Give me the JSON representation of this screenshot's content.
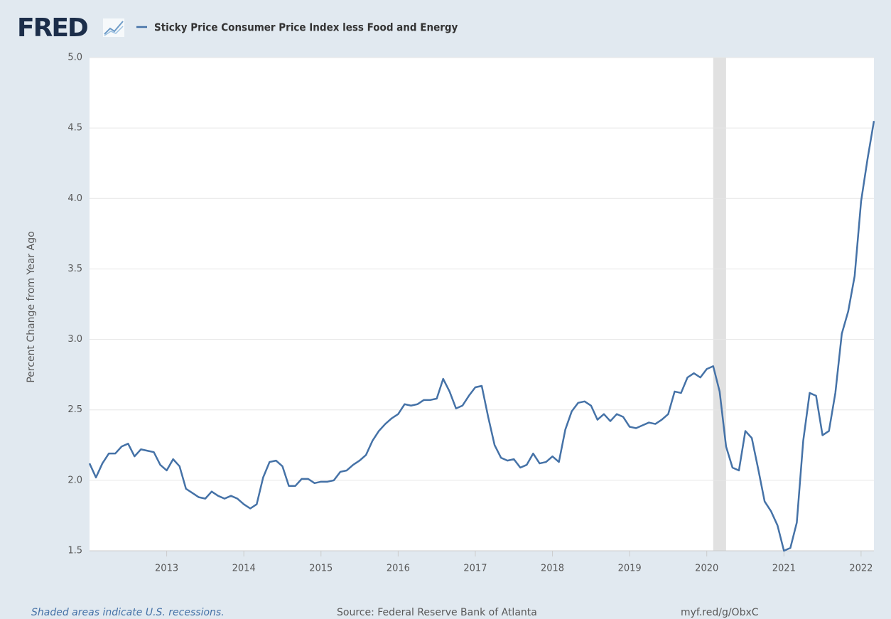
{
  "chart_data": {
    "type": "line",
    "logo": "FRED",
    "ylabel": "Percent Change from Year Ago",
    "footnote": "Shaded areas indicate U.S. recessions.",
    "source": "Source: Federal Reserve Bank of Atlanta",
    "url": "myf.red/g/ObxC",
    "x": [
      "2012-01",
      "2012-02",
      "2012-03",
      "2012-04",
      "2012-05",
      "2012-06",
      "2012-07",
      "2012-08",
      "2012-09",
      "2012-10",
      "2012-11",
      "2012-12",
      "2013-01",
      "2013-02",
      "2013-03",
      "2013-04",
      "2013-05",
      "2013-06",
      "2013-07",
      "2013-08",
      "2013-09",
      "2013-10",
      "2013-11",
      "2013-12",
      "2014-01",
      "2014-02",
      "2014-03",
      "2014-04",
      "2014-05",
      "2014-06",
      "2014-07",
      "2014-08",
      "2014-09",
      "2014-10",
      "2014-11",
      "2014-12",
      "2015-01",
      "2015-02",
      "2015-03",
      "2015-04",
      "2015-05",
      "2015-06",
      "2015-07",
      "2015-08",
      "2015-09",
      "2015-10",
      "2015-11",
      "2015-12",
      "2016-01",
      "2016-02",
      "2016-03",
      "2016-04",
      "2016-05",
      "2016-06",
      "2016-07",
      "2016-08",
      "2016-09",
      "2016-10",
      "2016-11",
      "2016-12",
      "2017-01",
      "2017-02",
      "2017-03",
      "2017-04",
      "2017-05",
      "2017-06",
      "2017-07",
      "2017-08",
      "2017-09",
      "2017-10",
      "2017-11",
      "2017-12",
      "2018-01",
      "2018-02",
      "2018-03",
      "2018-04",
      "2018-05",
      "2018-06",
      "2018-07",
      "2018-08",
      "2018-09",
      "2018-10",
      "2018-11",
      "2018-12",
      "2019-01",
      "2019-02",
      "2019-03",
      "2019-04",
      "2019-05",
      "2019-06",
      "2019-07",
      "2019-08",
      "2019-09",
      "2019-10",
      "2019-11",
      "2019-12",
      "2020-01",
      "2020-02",
      "2020-03",
      "2020-04",
      "2020-05",
      "2020-06",
      "2020-07",
      "2020-08",
      "2020-09",
      "2020-10",
      "2020-11",
      "2020-12",
      "2021-01",
      "2021-02",
      "2021-03",
      "2021-04",
      "2021-05",
      "2021-06",
      "2021-07",
      "2021-08",
      "2021-09",
      "2021-10",
      "2021-11",
      "2021-12",
      "2022-01",
      "2022-02",
      "2022-03"
    ],
    "series": [
      {
        "name": "Sticky Price Consumer Price Index less Food and Energy",
        "color": "#4572a7",
        "values": [
          2.12,
          2.02,
          2.12,
          2.19,
          2.19,
          2.24,
          2.26,
          2.17,
          2.22,
          2.21,
          2.2,
          2.11,
          2.07,
          2.15,
          2.1,
          1.94,
          1.91,
          1.88,
          1.87,
          1.92,
          1.89,
          1.87,
          1.89,
          1.87,
          1.83,
          1.8,
          1.83,
          2.02,
          2.13,
          2.14,
          2.1,
          1.96,
          1.96,
          2.01,
          2.01,
          1.98,
          1.99,
          1.99,
          2.0,
          2.06,
          2.07,
          2.11,
          2.14,
          2.18,
          2.28,
          2.35,
          2.4,
          2.44,
          2.47,
          2.54,
          2.53,
          2.54,
          2.57,
          2.57,
          2.58,
          2.72,
          2.63,
          2.51,
          2.53,
          2.6,
          2.66,
          2.67,
          2.45,
          2.25,
          2.16,
          2.14,
          2.15,
          2.09,
          2.11,
          2.19,
          2.12,
          2.13,
          2.17,
          2.13,
          2.36,
          2.49,
          2.55,
          2.56,
          2.53,
          2.43,
          2.47,
          2.42,
          2.47,
          2.45,
          2.38,
          2.37,
          2.39,
          2.41,
          2.4,
          2.43,
          2.47,
          2.63,
          2.62,
          2.73,
          2.76,
          2.73,
          2.79,
          2.81,
          2.63,
          2.24,
          2.09,
          2.07,
          2.35,
          2.3,
          2.08,
          1.85,
          1.78,
          1.68,
          1.5,
          1.52,
          1.7,
          2.28,
          2.62,
          2.6,
          2.32,
          2.35,
          2.62,
          3.04,
          3.2,
          3.45,
          3.98,
          4.28,
          4.55
        ]
      }
    ],
    "recessions": [
      [
        "2020-02",
        "2020-04"
      ]
    ],
    "recession_color": "#e1e1e1",
    "xlim": [
      "2012-01",
      "2022-03"
    ],
    "xticks": [
      2013,
      2014,
      2015,
      2016,
      2017,
      2018,
      2019,
      2020,
      2021,
      2022
    ],
    "ylim": [
      1.5,
      5.0
    ],
    "yticks": [
      1.5,
      {
        "value": 2,
        "label": "2.0"
      },
      2.5,
      {
        "value": 3,
        "label": "3.0"
      },
      3.5,
      {
        "value": 4,
        "label": "4.0"
      },
      4.5,
      {
        "value": 5,
        "label": "5.0"
      }
    ],
    "grid": true
  }
}
